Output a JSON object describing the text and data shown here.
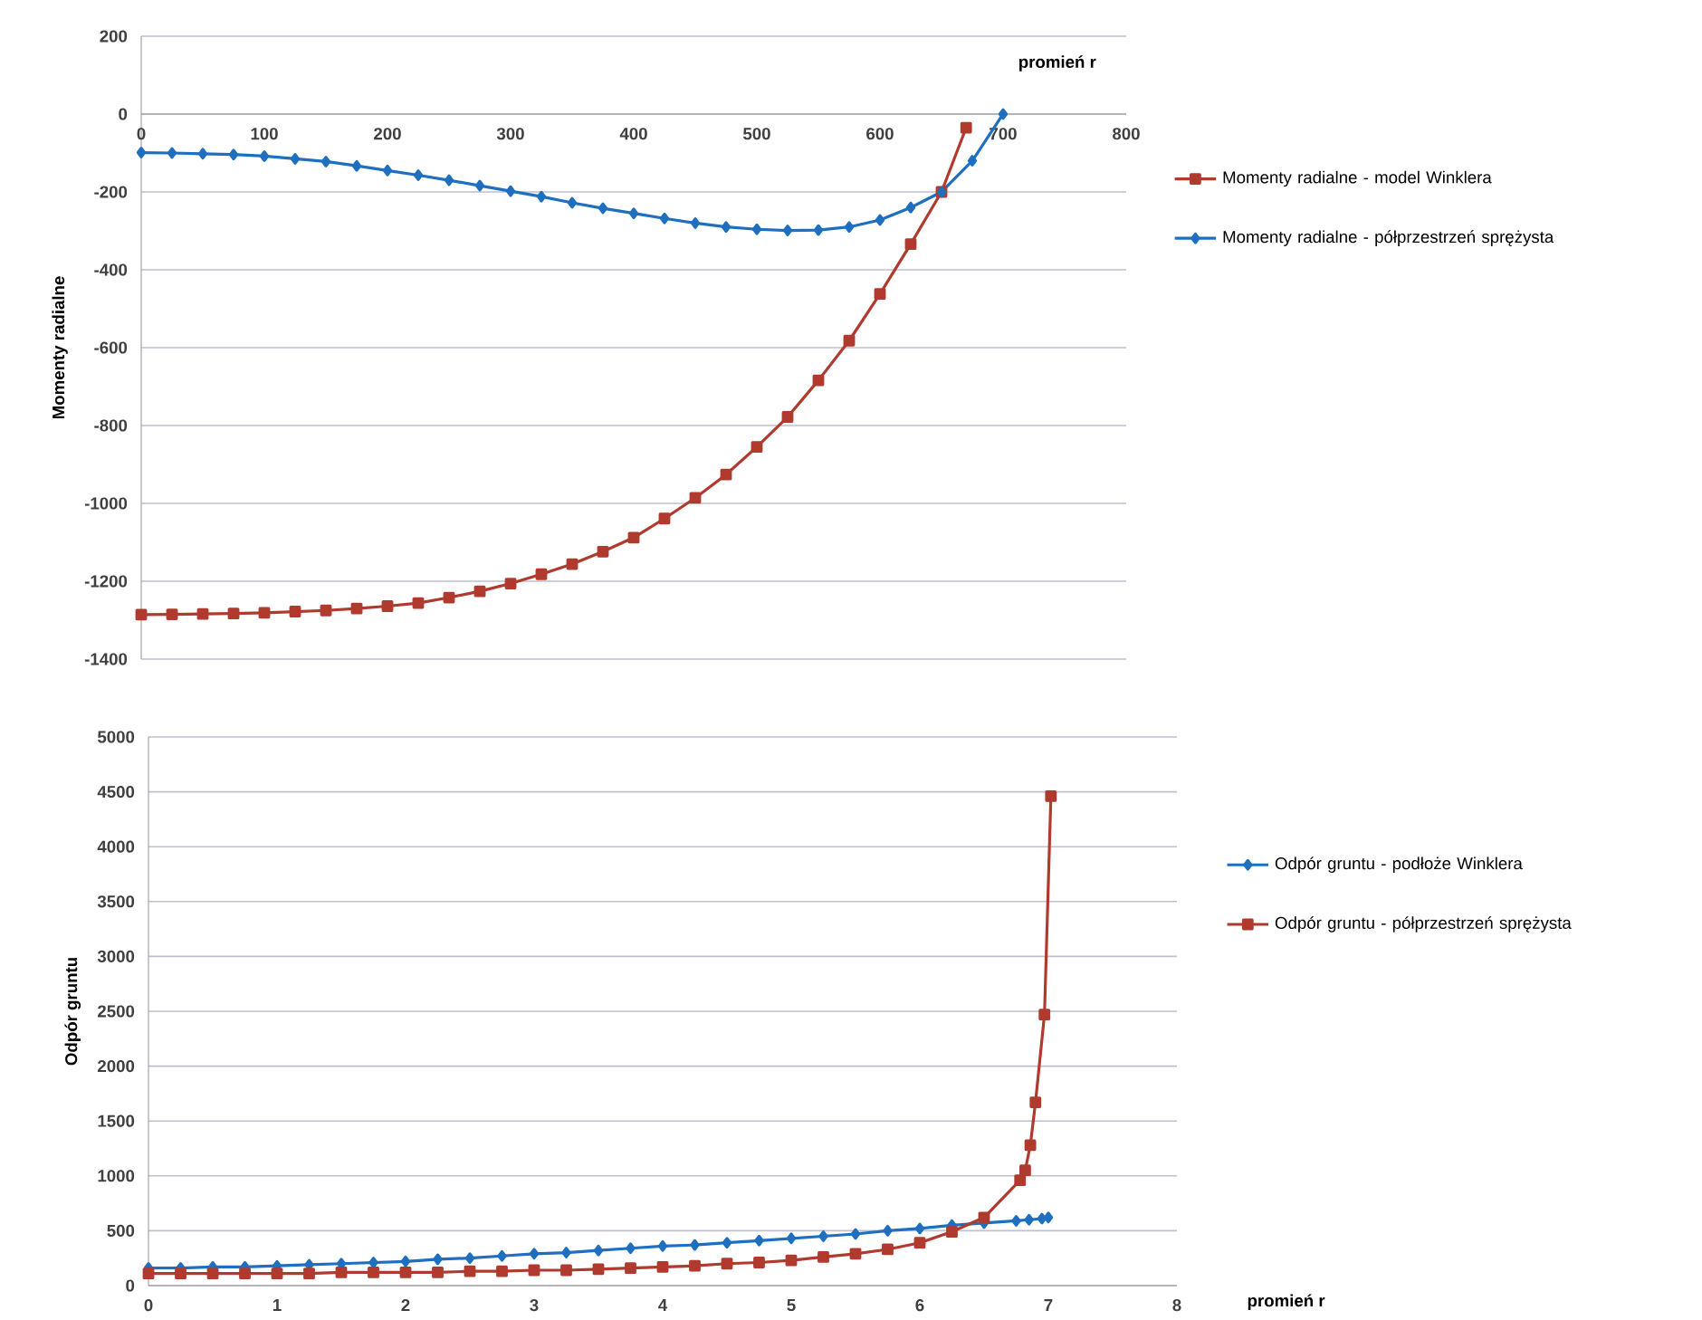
{
  "chart_data": [
    {
      "type": "line",
      "xlabel": "promień r",
      "ylabel": "Momenty radialne",
      "xlim": [
        0,
        800
      ],
      "ylim": [
        -1400,
        200
      ],
      "xticks": [
        0,
        100,
        200,
        300,
        400,
        500,
        600,
        700,
        800
      ],
      "yticks": [
        -1400,
        -1200,
        -1000,
        -800,
        -600,
        -400,
        -200,
        0,
        200
      ],
      "grid": "y",
      "legend": "right",
      "line_style": "solid",
      "series": [
        {
          "name": "Momenty radialne - model Winklera",
          "color": "#b03a2e",
          "marker": "square",
          "x": [
            0,
            25,
            50,
            75,
            100,
            125,
            150,
            175,
            200,
            225,
            250,
            275,
            300,
            325,
            350,
            375,
            400,
            425,
            450,
            475,
            500,
            525,
            550,
            575,
            600,
            625,
            650,
            670
          ],
          "values": [
            -1286,
            -1285,
            -1284,
            -1283,
            -1281,
            -1278,
            -1275,
            -1270,
            -1264,
            -1256,
            -1242,
            -1226,
            -1206,
            -1182,
            -1156,
            -1124,
            -1088,
            -1039,
            -986,
            -926,
            -855,
            -778,
            -684,
            -582,
            -462,
            -334,
            -200,
            -35
          ]
        },
        {
          "name": "Momenty radialne - półprzestrzeń sprężysta",
          "color": "#1f6fc0",
          "marker": "diamond",
          "x": [
            0,
            25,
            50,
            75,
            100,
            125,
            150,
            175,
            200,
            225,
            250,
            275,
            300,
            325,
            350,
            375,
            400,
            425,
            450,
            475,
            500,
            525,
            550,
            575,
            600,
            625,
            650,
            675,
            700
          ],
          "values": [
            -99,
            -100,
            -102,
            -104,
            -108,
            -115,
            -122,
            -133,
            -145,
            -157,
            -170,
            -184,
            -198,
            -212,
            -228,
            -242,
            -255,
            -268,
            -280,
            -290,
            -296,
            -299,
            -298,
            -290,
            -272,
            -240,
            -200,
            -120,
            0
          ]
        }
      ]
    },
    {
      "type": "line",
      "xlabel": "promień r",
      "ylabel": "Odpór gruntu",
      "xlim": [
        0,
        8
      ],
      "ylim": [
        0,
        5000
      ],
      "xticks": [
        0,
        1,
        2,
        3,
        4,
        5,
        6,
        7,
        8
      ],
      "yticks": [
        0,
        500,
        1000,
        1500,
        2000,
        2500,
        3000,
        3500,
        4000,
        4500,
        5000
      ],
      "grid": "y",
      "legend": "right",
      "line_style": "solid",
      "series": [
        {
          "name": "Odpór gruntu - podłoże Winklera",
          "color": "#1f6fc0",
          "marker": "diamond",
          "x": [
            0,
            0.25,
            0.5,
            0.75,
            1,
            1.25,
            1.5,
            1.75,
            2,
            2.25,
            2.5,
            2.75,
            3,
            3.25,
            3.5,
            3.75,
            4,
            4.25,
            4.5,
            4.75,
            5,
            5.25,
            5.5,
            5.75,
            6,
            6.25,
            6.5,
            6.75,
            6.85,
            6.95,
            7
          ],
          "values": [
            160,
            160,
            170,
            170,
            180,
            190,
            200,
            210,
            220,
            240,
            250,
            270,
            290,
            300,
            320,
            340,
            360,
            370,
            390,
            410,
            430,
            450,
            470,
            500,
            520,
            550,
            570,
            590,
            600,
            610,
            620
          ]
        },
        {
          "name": "Odpór gruntu - półprzestrzeń sprężysta",
          "color": "#b03a2e",
          "marker": "square",
          "x": [
            0,
            0.25,
            0.5,
            0.75,
            1,
            1.25,
            1.5,
            1.75,
            2,
            2.25,
            2.5,
            2.75,
            3,
            3.25,
            3.5,
            3.75,
            4,
            4.25,
            4.5,
            4.75,
            5,
            5.25,
            5.5,
            5.75,
            6,
            6.25,
            6.5,
            6.78,
            6.82,
            6.86,
            6.9,
            6.97,
            7.02
          ],
          "values": [
            110,
            110,
            110,
            110,
            110,
            110,
            120,
            120,
            120,
            120,
            130,
            130,
            140,
            140,
            150,
            160,
            170,
            180,
            200,
            210,
            230,
            260,
            290,
            330,
            390,
            490,
            620,
            960,
            1050,
            1280,
            1670,
            2470,
            4460
          ]
        }
      ]
    }
  ]
}
